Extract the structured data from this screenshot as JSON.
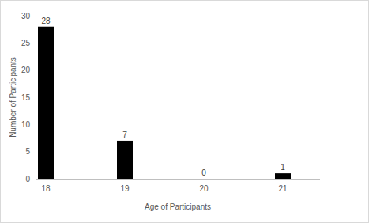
{
  "chart_data": {
    "type": "bar",
    "x_label": "Age of Participants",
    "y_label": "Number of Participants",
    "categories": [
      "18",
      "19",
      "20",
      "21"
    ],
    "values": [
      28,
      7,
      0,
      1
    ],
    "color": "#000000",
    "ylim": [
      0,
      30
    ],
    "yticks": [
      0,
      5,
      10,
      15,
      20,
      25,
      30
    ],
    "grid": false,
    "data_labels": true
  }
}
